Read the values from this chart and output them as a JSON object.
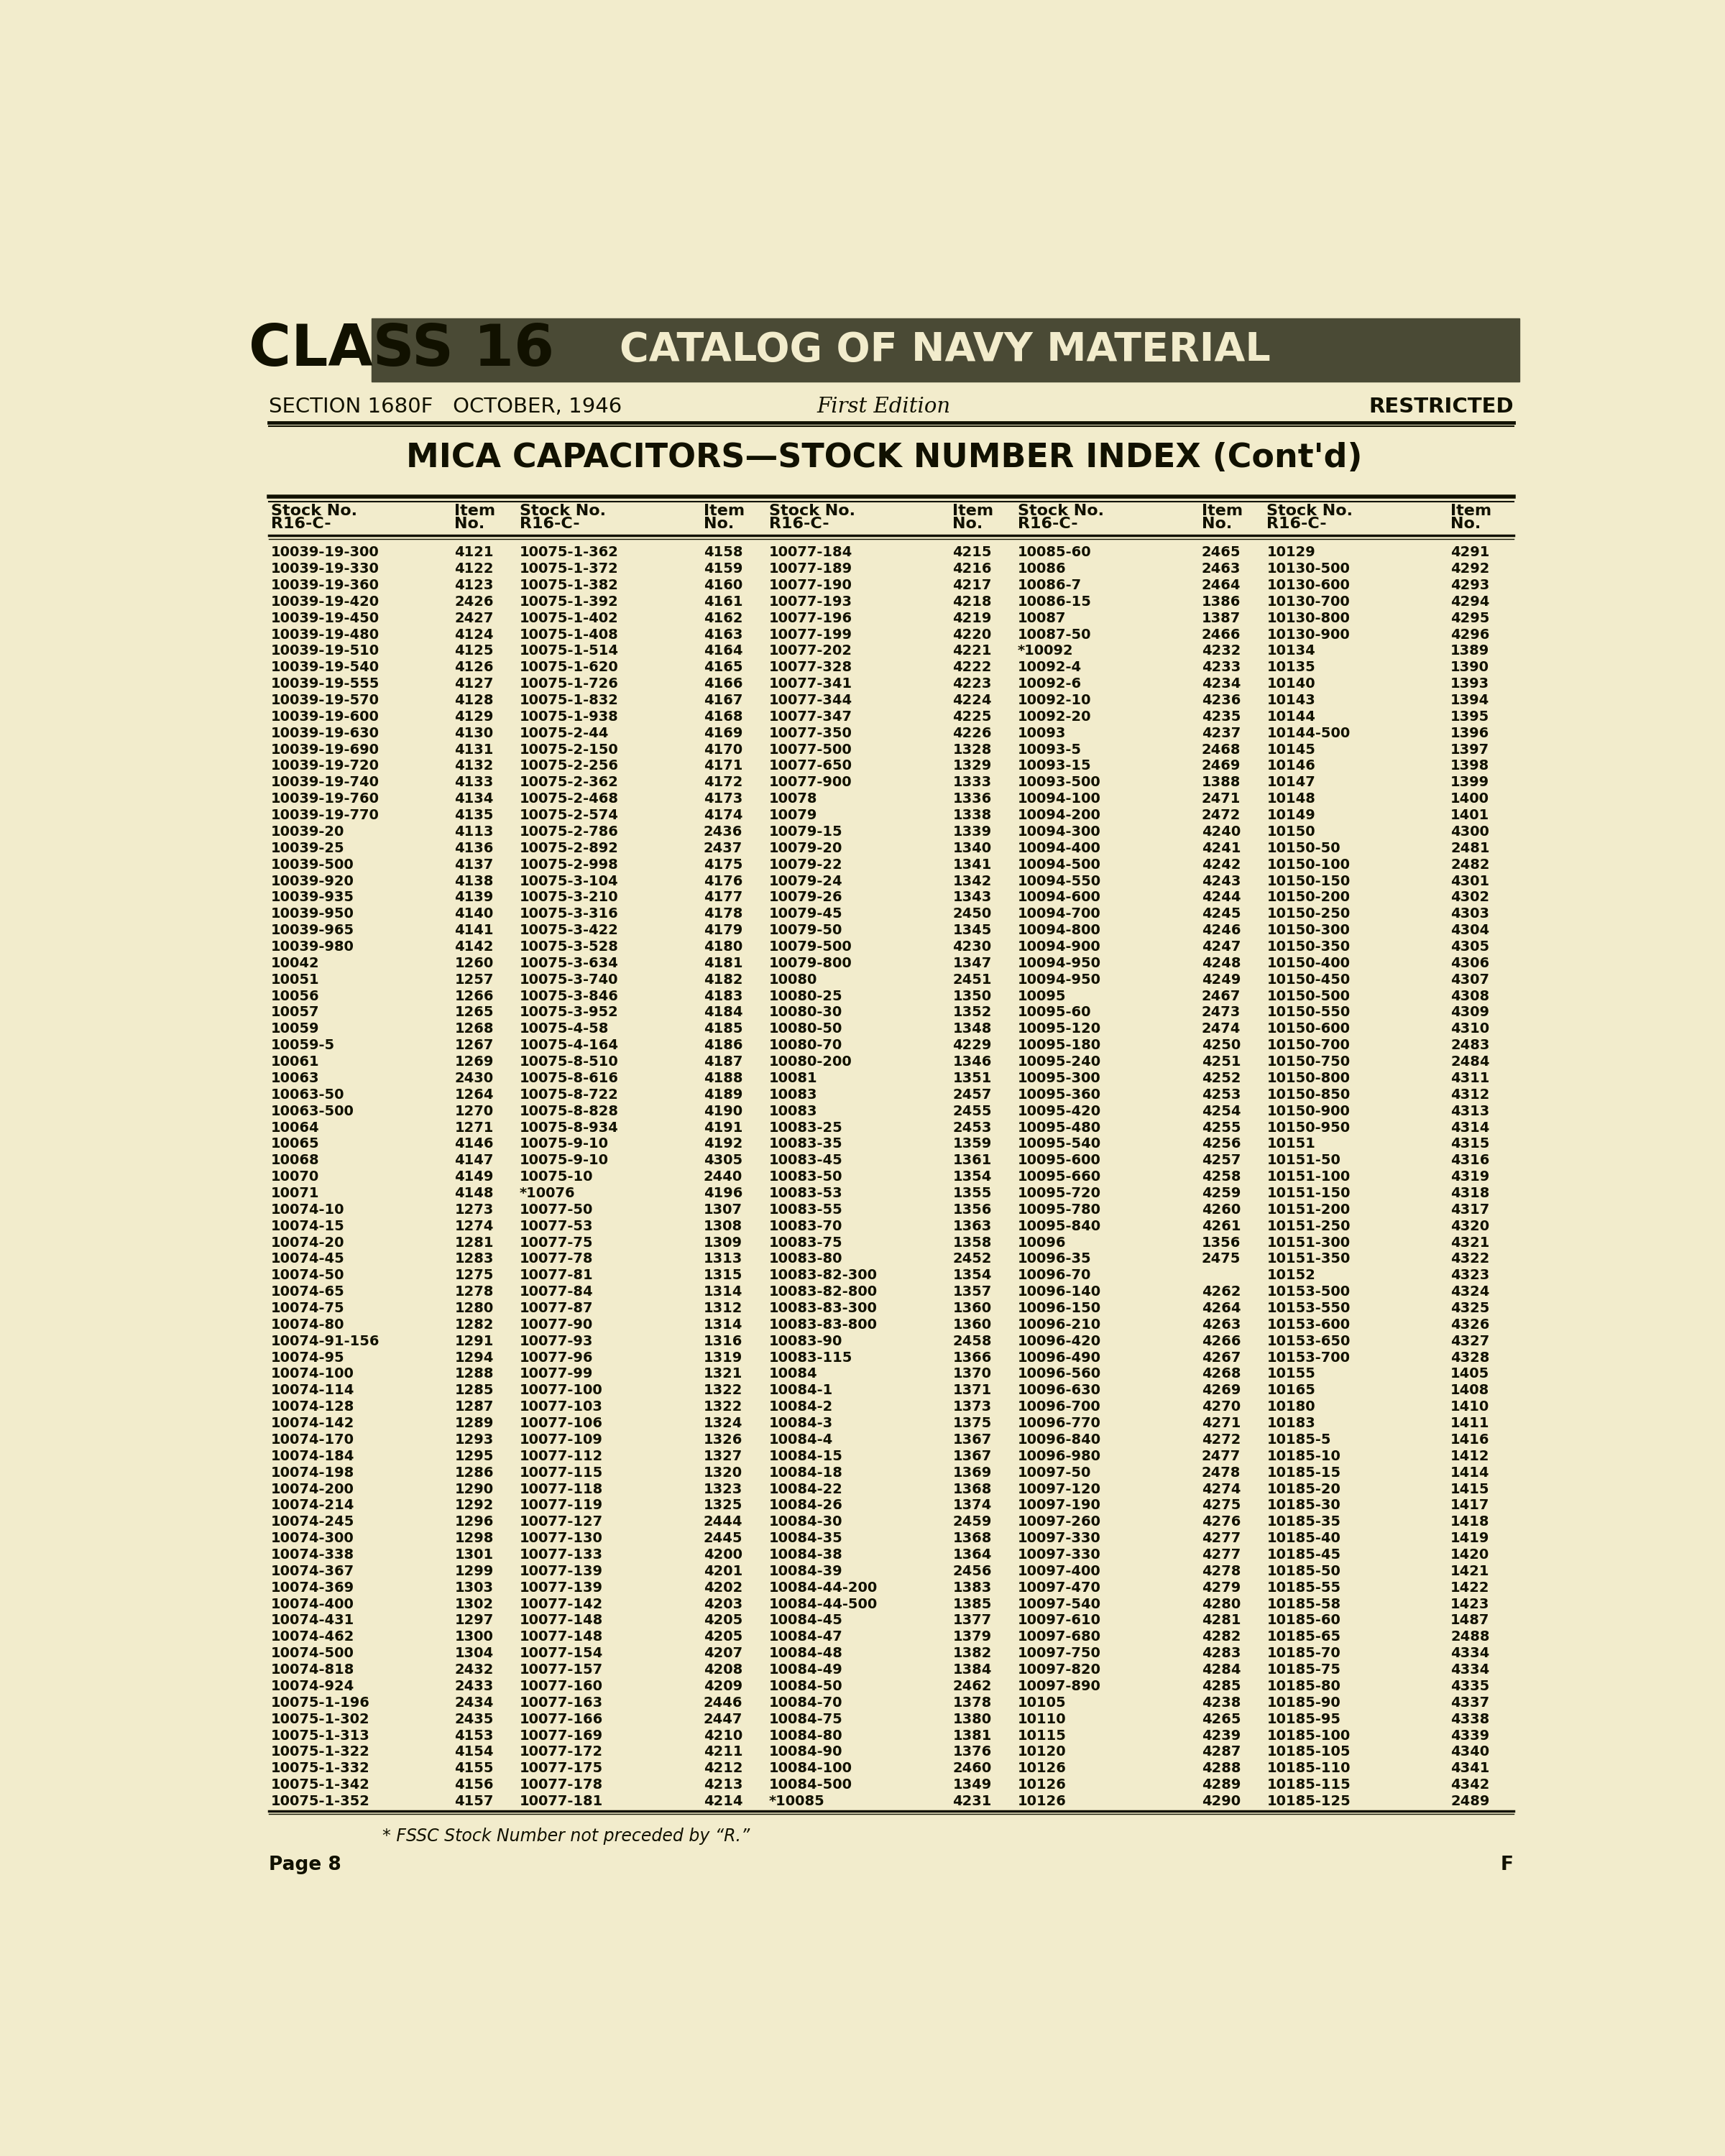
{
  "bg_color": "#f2eccc",
  "header_bg": "#4a4a35",
  "header_text_color": "#f2eccc",
  "class_text": "CLASS 16",
  "catalog_text": "CATALOG OF NAVY MATERIAL",
  "section_text": "SECTION 1680F   OCTOBER, 1946",
  "edition_text": "First Edition",
  "restricted_text": "RESTRICTED",
  "title_text": "MICA CAPACITORS—STOCK NUMBER INDEX (Cont'd)",
  "footer_text": "* FSSC Stock Number not preceded by ‘R.’’",
  "page_num": "Page 8",
  "page_letter": "F",
  "table_data": [
    [
      "10039-19-300",
      "4121",
      "10075-1-362",
      "4158",
      "10077-184",
      "4215",
      "10085-60",
      "2465",
      "10129",
      "4291"
    ],
    [
      "10039-19-330",
      "4122",
      "10075-1-372",
      "4159",
      "10077-189",
      "4216",
      "10086",
      "2463",
      "10130-500",
      "4292"
    ],
    [
      "10039-19-360",
      "4123",
      "10075-1-382",
      "4160",
      "10077-190",
      "4217",
      "10086-7",
      "2464",
      "10130-600",
      "4293"
    ],
    [
      "10039-19-420",
      "2426",
      "10075-1-392",
      "4161",
      "10077-193",
      "4218",
      "10086-15",
      "1386",
      "10130-700",
      "4294"
    ],
    [
      "10039-19-450",
      "2427",
      "10075-1-402",
      "4162",
      "10077-196",
      "4219",
      "10087",
      "1387",
      "10130-800",
      "4295"
    ],
    [
      "10039-19-480",
      "4124",
      "10075-1-408",
      "4163",
      "10077-199",
      "4220",
      "10087-50",
      "2466",
      "10130-900",
      "4296"
    ],
    [
      "10039-19-510",
      "4125",
      "10075-1-514",
      "4164",
      "10077-202",
      "4221",
      "*10092",
      "4232",
      "10134",
      "1389"
    ],
    [
      "10039-19-540",
      "4126",
      "10075-1-620",
      "4165",
      "10077-328",
      "4222",
      "10092-4",
      "4233",
      "10135",
      "1390"
    ],
    [
      "10039-19-555",
      "4127",
      "10075-1-726",
      "4166",
      "10077-341",
      "4223",
      "10092-6",
      "4234",
      "10140",
      "1393"
    ],
    [
      "10039-19-570",
      "4128",
      "10075-1-832",
      "4167",
      "10077-344",
      "4224",
      "10092-10",
      "4236",
      "10143",
      "1394"
    ],
    [
      "10039-19-600",
      "4129",
      "10075-1-938",
      "4168",
      "10077-347",
      "4225",
      "10092-20",
      "4235",
      "10144",
      "1395"
    ],
    [
      "10039-19-630",
      "4130",
      "10075-2-44",
      "4169",
      "10077-350",
      "4226",
      "10093",
      "4237",
      "10144-500",
      "1396"
    ],
    [
      "10039-19-690",
      "4131",
      "10075-2-150",
      "4170",
      "10077-500",
      "1328",
      "10093-5",
      "2468",
      "10145",
      "1397"
    ],
    [
      "10039-19-720",
      "4132",
      "10075-2-256",
      "4171",
      "10077-650",
      "1329",
      "10093-15",
      "2469",
      "10146",
      "1398"
    ],
    [
      "10039-19-740",
      "4133",
      "10075-2-362",
      "4172",
      "10077-900",
      "1333",
      "10093-500",
      "1388",
      "10147",
      "1399"
    ],
    [
      "10039-19-760",
      "4134",
      "10075-2-468",
      "4173",
      "10078",
      "1336",
      "10094-100",
      "2471",
      "10148",
      "1400"
    ],
    [
      "10039-19-770",
      "4135",
      "10075-2-574",
      "4174",
      "10079",
      "1338",
      "10094-200",
      "2472",
      "10149",
      "1401"
    ],
    [
      "10039-20",
      "4113",
      "10075-2-786",
      "2436",
      "10079-15",
      "1339",
      "10094-300",
      "4240",
      "10150",
      "4300"
    ],
    [
      "10039-25",
      "4136",
      "10075-2-892",
      "2437",
      "10079-20",
      "1340",
      "10094-400",
      "4241",
      "10150-50",
      "2481"
    ],
    [
      "10039-500",
      "4137",
      "10075-2-998",
      "4175",
      "10079-22",
      "1341",
      "10094-500",
      "4242",
      "10150-100",
      "2482"
    ],
    [
      "10039-920",
      "4138",
      "10075-3-104",
      "4176",
      "10079-24",
      "1342",
      "10094-550",
      "4243",
      "10150-150",
      "4301"
    ],
    [
      "10039-935",
      "4139",
      "10075-3-210",
      "4177",
      "10079-26",
      "1343",
      "10094-600",
      "4244",
      "10150-200",
      "4302"
    ],
    [
      "10039-950",
      "4140",
      "10075-3-316",
      "4178",
      "10079-45",
      "2450",
      "10094-700",
      "4245",
      "10150-250",
      "4303"
    ],
    [
      "10039-965",
      "4141",
      "10075-3-422",
      "4179",
      "10079-50",
      "1345",
      "10094-800",
      "4246",
      "10150-300",
      "4304"
    ],
    [
      "10039-980",
      "4142",
      "10075-3-528",
      "4180",
      "10079-500",
      "4230",
      "10094-900",
      "4247",
      "10150-350",
      "4305"
    ],
    [
      "10042",
      "1260",
      "10075-3-634",
      "4181",
      "10079-800",
      "1347",
      "10094-950",
      "4248",
      "10150-400",
      "4306"
    ],
    [
      "10051",
      "1257",
      "10075-3-740",
      "4182",
      "10080",
      "2451",
      "10094-950",
      "4249",
      "10150-450",
      "4307"
    ],
    [
      "10056",
      "1266",
      "10075-3-846",
      "4183",
      "10080-25",
      "1350",
      "10095",
      "2467",
      "10150-500",
      "4308"
    ],
    [
      "10057",
      "1265",
      "10075-3-952",
      "4184",
      "10080-30",
      "1352",
      "10095-60",
      "2473",
      "10150-550",
      "4309"
    ],
    [
      "10059",
      "1268",
      "10075-4-58",
      "4185",
      "10080-50",
      "1348",
      "10095-120",
      "2474",
      "10150-600",
      "4310"
    ],
    [
      "10059-5",
      "1267",
      "10075-4-164",
      "4186",
      "10080-70",
      "4229",
      "10095-180",
      "4250",
      "10150-700",
      "2483"
    ],
    [
      "10061",
      "1269",
      "10075-8-510",
      "4187",
      "10080-200",
      "1346",
      "10095-240",
      "4251",
      "10150-750",
      "2484"
    ],
    [
      "10063",
      "2430",
      "10075-8-616",
      "4188",
      "10081",
      "1351",
      "10095-300",
      "4252",
      "10150-800",
      "4311"
    ],
    [
      "10063-50",
      "1264",
      "10075-8-722",
      "4189",
      "10083",
      "2457",
      "10095-360",
      "4253",
      "10150-850",
      "4312"
    ],
    [
      "10063-500",
      "1270",
      "10075-8-828",
      "4190",
      "10083",
      "2455",
      "10095-420",
      "4254",
      "10150-900",
      "4313"
    ],
    [
      "10064",
      "1271",
      "10075-8-934",
      "4191",
      "10083-25",
      "2453",
      "10095-480",
      "4255",
      "10150-950",
      "4314"
    ],
    [
      "10065",
      "4146",
      "10075-9-10",
      "4192",
      "10083-35",
      "1359",
      "10095-540",
      "4256",
      "10151",
      "4315"
    ],
    [
      "10068",
      "4147",
      "10075-9-10",
      "4305",
      "10083-45",
      "1361",
      "10095-600",
      "4257",
      "10151-50",
      "4316"
    ],
    [
      "10070",
      "4149",
      "10075-10",
      "2440",
      "10083-50",
      "1354",
      "10095-660",
      "4258",
      "10151-100",
      "4319"
    ],
    [
      "10071",
      "4148",
      "*10076",
      "4196",
      "10083-53",
      "1355",
      "10095-720",
      "4259",
      "10151-150",
      "4318"
    ],
    [
      "10074-10",
      "1273",
      "10077-50",
      "1307",
      "10083-55",
      "1356",
      "10095-780",
      "4260",
      "10151-200",
      "4317"
    ],
    [
      "10074-15",
      "1274",
      "10077-53",
      "1308",
      "10083-70",
      "1363",
      "10095-840",
      "4261",
      "10151-250",
      "4320"
    ],
    [
      "10074-20",
      "1281",
      "10077-75",
      "1309",
      "10083-75",
      "1358",
      "10096",
      "1356",
      "10151-300",
      "4321"
    ],
    [
      "10074-45",
      "1283",
      "10077-78",
      "1313",
      "10083-80",
      "2452",
      "10096-35",
      "2475",
      "10151-350",
      "4322"
    ],
    [
      "10074-50",
      "1275",
      "10077-81",
      "1315",
      "10083-82-300",
      "1354",
      "10096-70",
      "",
      "10152",
      "4323"
    ],
    [
      "10074-65",
      "1278",
      "10077-84",
      "1314",
      "10083-82-800",
      "1357",
      "10096-140",
      "4262",
      "10153-500",
      "4324"
    ],
    [
      "10074-75",
      "1280",
      "10077-87",
      "1312",
      "10083-83-300",
      "1360",
      "10096-150",
      "4264",
      "10153-550",
      "4325"
    ],
    [
      "10074-80",
      "1282",
      "10077-90",
      "1314",
      "10083-83-800",
      "1360",
      "10096-210",
      "4263",
      "10153-600",
      "4326"
    ],
    [
      "10074-91-156",
      "1291",
      "10077-93",
      "1316",
      "10083-90",
      "2458",
      "10096-420",
      "4266",
      "10153-650",
      "4327"
    ],
    [
      "10074-95",
      "1294",
      "10077-96",
      "1319",
      "10083-115",
      "1366",
      "10096-490",
      "4267",
      "10153-700",
      "4328"
    ],
    [
      "10074-100",
      "1288",
      "10077-99",
      "1321",
      "10084",
      "1370",
      "10096-560",
      "4268",
      "10155",
      "1405"
    ],
    [
      "10074-114",
      "1285",
      "10077-100",
      "1322",
      "10084-1",
      "1371",
      "10096-630",
      "4269",
      "10165",
      "1408"
    ],
    [
      "10074-128",
      "1287",
      "10077-103",
      "1322",
      "10084-2",
      "1373",
      "10096-700",
      "4270",
      "10180",
      "1410"
    ],
    [
      "10074-142",
      "1289",
      "10077-106",
      "1324",
      "10084-3",
      "1375",
      "10096-770",
      "4271",
      "10183",
      "1411"
    ],
    [
      "10074-170",
      "1293",
      "10077-109",
      "1326",
      "10084-4",
      "1367",
      "10096-840",
      "4272",
      "10185-5",
      "1416"
    ],
    [
      "10074-184",
      "1295",
      "10077-112",
      "1327",
      "10084-15",
      "1367",
      "10096-980",
      "2477",
      "10185-10",
      "1412"
    ],
    [
      "10074-198",
      "1286",
      "10077-115",
      "1320",
      "10084-18",
      "1369",
      "10097-50",
      "2478",
      "10185-15",
      "1414"
    ],
    [
      "10074-200",
      "1290",
      "10077-118",
      "1323",
      "10084-22",
      "1368",
      "10097-120",
      "4274",
      "10185-20",
      "1415"
    ],
    [
      "10074-214",
      "1292",
      "10077-119",
      "1325",
      "10084-26",
      "1374",
      "10097-190",
      "4275",
      "10185-30",
      "1417"
    ],
    [
      "10074-245",
      "1296",
      "10077-127",
      "2444",
      "10084-30",
      "2459",
      "10097-260",
      "4276",
      "10185-35",
      "1418"
    ],
    [
      "10074-300",
      "1298",
      "10077-130",
      "2445",
      "10084-35",
      "1368",
      "10097-330",
      "4277",
      "10185-40",
      "1419"
    ],
    [
      "10074-338",
      "1301",
      "10077-133",
      "4200",
      "10084-38",
      "1364",
      "10097-330",
      "4277",
      "10185-45",
      "1420"
    ],
    [
      "10074-367",
      "1299",
      "10077-139",
      "4201",
      "10084-39",
      "2456",
      "10097-400",
      "4278",
      "10185-50",
      "1421"
    ],
    [
      "10074-369",
      "1303",
      "10077-139",
      "4202",
      "10084-44-200",
      "1383",
      "10097-470",
      "4279",
      "10185-55",
      "1422"
    ],
    [
      "10074-400",
      "1302",
      "10077-142",
      "4203",
      "10084-44-500",
      "1385",
      "10097-540",
      "4280",
      "10185-58",
      "1423"
    ],
    [
      "10074-431",
      "1297",
      "10077-148",
      "4205",
      "10084-45",
      "1377",
      "10097-610",
      "4281",
      "10185-60",
      "1487"
    ],
    [
      "10074-462",
      "1300",
      "10077-148",
      "4205",
      "10084-47",
      "1379",
      "10097-680",
      "4282",
      "10185-65",
      "2488"
    ],
    [
      "10074-500",
      "1304",
      "10077-154",
      "4207",
      "10084-48",
      "1382",
      "10097-750",
      "4283",
      "10185-70",
      "4334"
    ],
    [
      "10074-818",
      "2432",
      "10077-157",
      "4208",
      "10084-49",
      "1384",
      "10097-820",
      "4284",
      "10185-75",
      "4334"
    ],
    [
      "10074-924",
      "2433",
      "10077-160",
      "4209",
      "10084-50",
      "2462",
      "10097-890",
      "4285",
      "10185-80",
      "4335"
    ],
    [
      "10075-1-196",
      "2434",
      "10077-163",
      "2446",
      "10084-70",
      "1378",
      "10105",
      "4238",
      "10185-90",
      "4337"
    ],
    [
      "10075-1-302",
      "2435",
      "10077-166",
      "2447",
      "10084-75",
      "1380",
      "10110",
      "4265",
      "10185-95",
      "4338"
    ],
    [
      "10075-1-313",
      "4153",
      "10077-169",
      "4210",
      "10084-80",
      "1381",
      "10115",
      "4239",
      "10185-100",
      "4339"
    ],
    [
      "10075-1-322",
      "4154",
      "10077-172",
      "4211",
      "10084-90",
      "1376",
      "10120",
      "4287",
      "10185-105",
      "4340"
    ],
    [
      "10075-1-332",
      "4155",
      "10077-175",
      "4212",
      "10084-100",
      "2460",
      "10126",
      "4288",
      "10185-110",
      "4341"
    ],
    [
      "10075-1-342",
      "4156",
      "10077-178",
      "4213",
      "10084-500",
      "1349",
      "10126",
      "4289",
      "10185-115",
      "4342"
    ],
    [
      "10075-1-352",
      "4157",
      "10077-181",
      "4214",
      "*10085",
      "4231",
      "10126",
      "4290",
      "10185-125",
      "2489"
    ]
  ]
}
